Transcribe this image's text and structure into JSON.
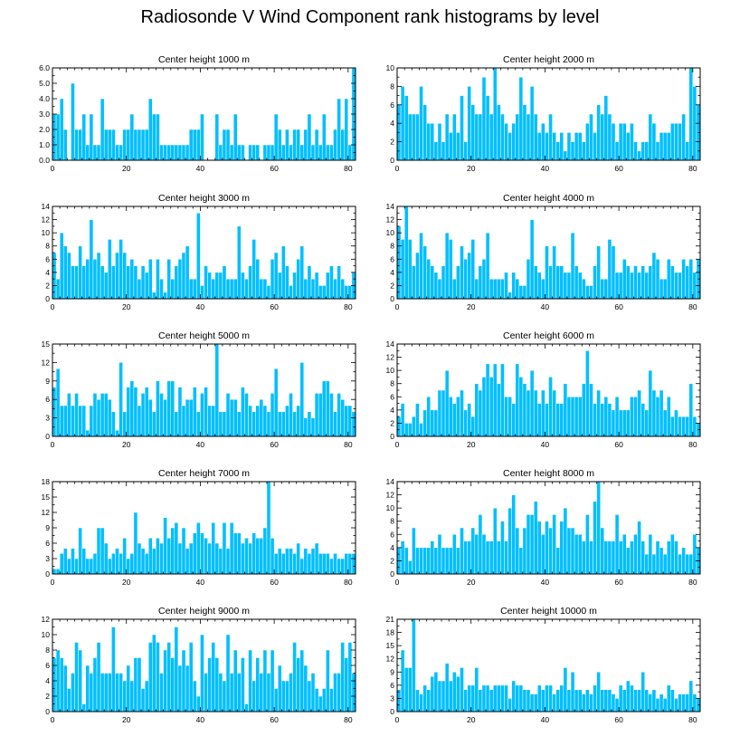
{
  "title": "Radiosonde V Wind Component rank histograms by level",
  "colors": {
    "bar_fill": "#00bfff",
    "bar_edge": "#ffffff",
    "axis": "#000000"
  },
  "chart_data": [
    {
      "type": "bar",
      "title": "Center height 1000 m",
      "xlim": [
        0,
        82
      ],
      "ylim": [
        0,
        6
      ],
      "xticks": [
        0,
        20,
        40,
        60,
        80
      ],
      "yticks": [
        0,
        1,
        2,
        3,
        4,
        5,
        6
      ],
      "ytick_labels": [
        "0.0",
        "1.0",
        "2.0",
        "3.0",
        "4.0",
        "5.0",
        "6.0"
      ],
      "values": [
        3,
        3,
        4,
        2,
        0,
        5,
        2,
        2,
        3,
        1,
        3,
        1,
        1,
        4,
        2,
        2,
        2,
        1,
        1,
        2,
        2,
        3,
        2,
        2,
        2,
        2,
        4,
        3,
        3,
        1,
        1,
        1,
        1,
        1,
        1,
        1,
        1,
        2,
        2,
        2,
        3,
        0,
        0,
        0,
        3,
        1,
        2,
        2,
        1,
        3,
        1,
        1,
        0,
        1,
        1,
        1,
        0,
        1,
        1,
        1,
        3,
        2,
        1,
        2,
        1,
        2,
        2,
        1,
        2,
        3,
        1,
        2,
        1,
        3,
        1,
        1,
        2,
        4,
        2,
        4,
        1,
        6
      ]
    },
    {
      "type": "bar",
      "title": "Center height 2000 m",
      "xlim": [
        0,
        82
      ],
      "ylim": [
        0,
        10
      ],
      "xticks": [
        0,
        20,
        40,
        60,
        80
      ],
      "yticks": [
        0,
        2,
        4,
        6,
        8,
        10
      ],
      "ytick_labels": [
        "0",
        "2",
        "4",
        "6",
        "8",
        "10"
      ],
      "values": [
        6,
        8,
        7,
        5,
        5,
        5,
        8,
        6,
        4,
        4,
        2,
        4,
        2,
        5,
        3,
        5,
        3,
        7,
        2,
        8,
        6,
        5,
        5,
        9,
        7,
        5,
        10,
        6,
        5,
        4,
        3,
        4,
        5,
        9,
        6,
        5,
        8,
        5,
        3,
        4,
        3,
        5,
        3,
        2,
        3,
        1,
        3,
        2,
        3,
        3,
        2,
        4,
        5,
        3,
        6,
        5,
        7,
        5,
        4,
        2,
        4,
        4,
        3,
        4,
        2,
        1,
        2,
        2,
        5,
        4,
        2,
        3,
        3,
        3,
        4,
        4,
        4,
        5,
        2,
        10,
        8,
        6
      ]
    },
    {
      "type": "bar",
      "title": "Center height 3000 m",
      "xlim": [
        0,
        82
      ],
      "ylim": [
        0,
        14
      ],
      "xticks": [
        0,
        20,
        40,
        60,
        80
      ],
      "yticks": [
        0,
        2,
        4,
        6,
        8,
        10,
        12,
        14
      ],
      "ytick_labels": [
        "0",
        "2",
        "4",
        "6",
        "8",
        "10",
        "12",
        "14"
      ],
      "values": [
        7,
        3,
        10,
        8,
        7,
        5,
        5,
        8,
        5,
        6,
        12,
        6,
        7,
        5,
        4,
        9,
        5,
        7,
        9,
        7,
        5,
        6,
        5,
        3,
        5,
        4,
        6,
        1,
        6,
        3,
        1,
        6,
        3,
        5,
        6,
        7,
        8,
        3,
        3,
        13,
        2,
        5,
        4,
        3,
        4,
        4,
        5,
        3,
        3,
        3,
        11,
        4,
        3,
        5,
        9,
        6,
        3,
        3,
        2,
        6,
        7,
        4,
        8,
        5,
        2,
        4,
        6,
        8,
        3,
        5,
        3,
        4,
        2,
        2,
        4,
        5,
        3,
        5,
        3,
        2,
        2,
        4
      ]
    },
    {
      "type": "bar",
      "title": "Center height 4000 m",
      "xlim": [
        0,
        82
      ],
      "ylim": [
        0,
        14
      ],
      "xticks": [
        0,
        20,
        40,
        60,
        80
      ],
      "yticks": [
        0,
        2,
        4,
        6,
        8,
        10,
        12,
        14
      ],
      "ytick_labels": [
        "0",
        "2",
        "4",
        "6",
        "8",
        "10",
        "12",
        "14"
      ],
      "values": [
        11,
        9,
        14,
        9,
        5,
        7,
        10,
        8,
        6,
        5,
        4,
        3,
        5,
        10,
        9,
        3,
        5,
        8,
        6,
        7,
        9,
        3,
        5,
        6,
        10,
        3,
        3,
        3,
        3,
        4,
        1,
        4,
        3,
        2,
        2,
        6,
        12,
        5,
        4,
        3,
        8,
        5,
        8,
        5,
        5,
        4,
        4,
        10,
        5,
        4,
        3,
        2,
        2,
        5,
        8,
        3,
        3,
        9,
        8,
        4,
        4,
        6,
        5,
        4,
        5,
        4,
        5,
        4,
        5,
        7,
        6,
        3,
        3,
        6,
        5,
        4,
        4,
        6,
        5,
        6,
        4,
        6
      ]
    },
    {
      "type": "bar",
      "title": "Center height 5000 m",
      "xlim": [
        0,
        82
      ],
      "ylim": [
        0,
        15
      ],
      "xticks": [
        0,
        20,
        40,
        60,
        80
      ],
      "yticks": [
        0,
        3,
        6,
        9,
        12,
        15
      ],
      "ytick_labels": [
        "0",
        "3",
        "6",
        "9",
        "12",
        "15"
      ],
      "values": [
        8,
        11,
        5,
        5,
        7,
        5,
        7,
        5,
        5,
        1,
        5,
        7,
        6,
        7,
        7,
        6,
        4,
        1,
        12,
        4,
        8,
        9,
        8,
        5,
        7,
        8,
        6,
        4,
        9,
        7,
        6,
        9,
        9,
        4,
        8,
        5,
        6,
        6,
        8,
        4,
        7,
        8,
        5,
        5,
        15,
        4,
        4,
        7,
        6,
        6,
        4,
        8,
        7,
        5,
        4,
        5,
        6,
        5,
        4,
        7,
        11,
        4,
        4,
        5,
        7,
        4,
        5,
        12,
        3,
        4,
        3,
        7,
        7,
        9,
        9,
        7,
        4,
        7,
        6,
        5,
        5,
        4
      ]
    },
    {
      "type": "bar",
      "title": "Center height 6000 m",
      "xlim": [
        0,
        82
      ],
      "ylim": [
        0,
        14
      ],
      "xticks": [
        0,
        20,
        40,
        60,
        80
      ],
      "yticks": [
        0,
        2,
        4,
        6,
        8,
        10,
        12,
        14
      ],
      "ytick_labels": [
        "0",
        "2",
        "4",
        "6",
        "8",
        "10",
        "12",
        "14"
      ],
      "values": [
        3,
        5,
        2,
        2,
        3,
        5,
        2,
        4,
        6,
        4,
        4,
        7,
        7,
        10,
        6,
        5,
        6,
        7,
        4,
        5,
        3,
        8,
        7,
        9,
        11,
        9,
        11,
        8,
        11,
        6,
        6,
        5,
        11,
        9,
        8,
        7,
        10,
        7,
        5,
        7,
        5,
        9,
        7,
        5,
        5,
        8,
        6,
        6,
        6,
        6,
        8,
        13,
        8,
        5,
        7,
        5,
        6,
        5,
        4,
        6,
        4,
        4,
        4,
        6,
        6,
        7,
        5,
        4,
        10,
        7,
        6,
        7,
        4,
        6,
        3,
        4,
        3,
        3,
        3,
        8,
        3,
        2
      ]
    },
    {
      "type": "bar",
      "title": "Center height 7000 m",
      "xlim": [
        0,
        82
      ],
      "ylim": [
        0,
        18
      ],
      "xticks": [
        0,
        20,
        40,
        60,
        80
      ],
      "yticks": [
        0,
        3,
        6,
        9,
        12,
        15,
        18
      ],
      "ytick_labels": [
        "0",
        "3",
        "6",
        "9",
        "12",
        "15",
        "18"
      ],
      "values": [
        1,
        1,
        4,
        5,
        3,
        5,
        3,
        9,
        5,
        3,
        3,
        4,
        9,
        9,
        6,
        3,
        4,
        5,
        4,
        7,
        3,
        4,
        12,
        6,
        5,
        4,
        7,
        5,
        7,
        6,
        11,
        7,
        9,
        10,
        6,
        9,
        5,
        6,
        8,
        10,
        8,
        7,
        6,
        10,
        6,
        5,
        10,
        5,
        10,
        8,
        8,
        6,
        7,
        6,
        8,
        7,
        7,
        9,
        18,
        7,
        4,
        5,
        4,
        5,
        5,
        4,
        6,
        3,
        5,
        4,
        5,
        6,
        4,
        4,
        4,
        3,
        4,
        3,
        3,
        4,
        4,
        4
      ]
    },
    {
      "type": "bar",
      "title": "Center height 8000 m",
      "xlim": [
        0,
        82
      ],
      "ylim": [
        0,
        14
      ],
      "xticks": [
        0,
        20,
        40,
        60,
        80
      ],
      "yticks": [
        0,
        2,
        4,
        6,
        8,
        10,
        12,
        14
      ],
      "ytick_labels": [
        "0",
        "2",
        "4",
        "6",
        "8",
        "10",
        "12",
        "14"
      ],
      "values": [
        4,
        5,
        4,
        2,
        7,
        4,
        4,
        4,
        4,
        5,
        4,
        6,
        4,
        4,
        4,
        6,
        4,
        7,
        5,
        5,
        7,
        6,
        9,
        6,
        5,
        5,
        10,
        5,
        8,
        5,
        10,
        12,
        7,
        4,
        7,
        9,
        9,
        11,
        8,
        6,
        8,
        7,
        9,
        4,
        8,
        10,
        7,
        7,
        6,
        6,
        5,
        9,
        5,
        11,
        14,
        7,
        5,
        5,
        5,
        9,
        5,
        6,
        4,
        5,
        6,
        8,
        5,
        3,
        6,
        3,
        5,
        4,
        3,
        5,
        6,
        5,
        3,
        4,
        3,
        3,
        6,
        4
      ]
    },
    {
      "type": "bar",
      "title": "Center height 9000 m",
      "xlim": [
        0,
        82
      ],
      "ylim": [
        0,
        12
      ],
      "xticks": [
        0,
        20,
        40,
        60,
        80
      ],
      "yticks": [
        0,
        2,
        4,
        6,
        8,
        10,
        12
      ],
      "ytick_labels": [
        "0",
        "2",
        "4",
        "6",
        "8",
        "10",
        "12"
      ],
      "values": [
        7,
        8,
        7,
        6,
        3,
        5,
        9,
        8,
        1,
        6,
        5,
        7,
        9,
        5,
        5,
        5,
        11,
        5,
        5,
        4,
        6,
        4,
        7,
        7,
        3,
        4,
        9,
        10,
        9,
        5,
        8,
        9,
        7,
        11,
        6,
        8,
        6,
        9,
        4,
        2,
        10,
        5,
        7,
        9,
        7,
        5,
        4,
        10,
        5,
        8,
        5,
        7,
        1,
        8,
        4,
        7,
        5,
        8,
        5,
        8,
        3,
        6,
        4,
        4,
        5,
        9,
        7,
        8,
        6,
        4,
        5,
        3,
        2,
        3,
        8,
        3,
        5,
        5,
        9,
        7,
        9,
        5
      ]
    },
    {
      "type": "bar",
      "title": "Center height 10000 m",
      "xlim": [
        0,
        82
      ],
      "ylim": [
        0,
        21
      ],
      "xticks": [
        0,
        20,
        40,
        60,
        80
      ],
      "yticks": [
        0,
        3,
        6,
        9,
        12,
        15,
        18,
        21
      ],
      "ytick_labels": [
        "0",
        "3",
        "6",
        "9",
        "12",
        "15",
        "18",
        "21"
      ],
      "values": [
        5,
        14,
        10,
        10,
        21,
        5,
        4,
        6,
        5,
        8,
        9,
        7,
        7,
        11,
        7,
        9,
        8,
        10,
        5,
        6,
        6,
        10,
        5,
        6,
        6,
        5,
        6,
        6,
        6,
        6,
        3,
        7,
        6,
        6,
        5,
        5,
        4,
        4,
        6,
        5,
        6,
        6,
        4,
        5,
        6,
        10,
        5,
        9,
        5,
        5,
        4,
        5,
        4,
        6,
        9,
        5,
        5,
        5,
        4,
        3,
        6,
        5,
        7,
        6,
        5,
        5,
        9,
        5,
        4,
        5,
        3,
        4,
        3,
        6,
        5,
        3,
        4,
        4,
        4,
        7,
        4,
        3
      ]
    }
  ]
}
